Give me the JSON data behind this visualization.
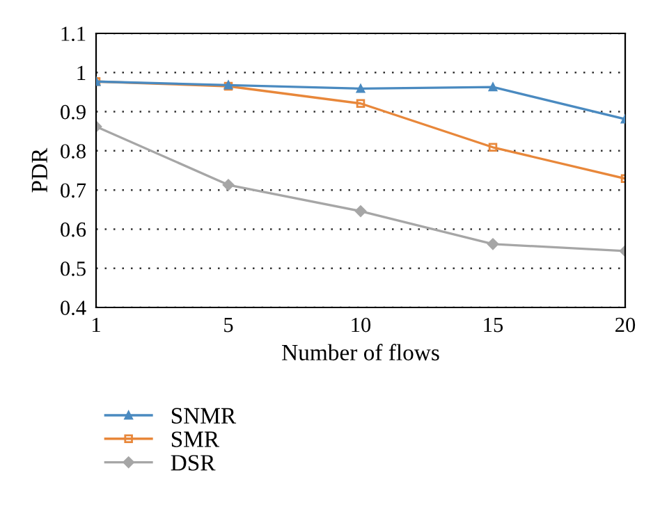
{
  "chart_data": {
    "type": "line",
    "xlabel": "Number of flows",
    "ylabel": "PDR",
    "categories": [
      "1",
      "5",
      "10",
      "15",
      "20"
    ],
    "series": [
      {
        "name": "SNMR",
        "color": "#4a8ac0",
        "marker": "triangle",
        "values": [
          0.977,
          0.968,
          0.959,
          0.963,
          0.881
        ]
      },
      {
        "name": "SMR",
        "color": "#e8873a",
        "marker": "square",
        "values": [
          0.977,
          0.965,
          0.921,
          0.809,
          0.729
        ]
      },
      {
        "name": "DSR",
        "color": "#a6a6a6",
        "marker": "diamond",
        "values": [
          0.862,
          0.713,
          0.646,
          0.562,
          0.544
        ]
      }
    ],
    "ylim": [
      0.4,
      1.1
    ],
    "yticks": [
      0.4,
      0.5,
      0.6,
      0.7,
      0.8,
      0.9,
      1,
      1.1
    ],
    "grid": "y",
    "legend": "bottom left",
    "line_style": "solid"
  }
}
